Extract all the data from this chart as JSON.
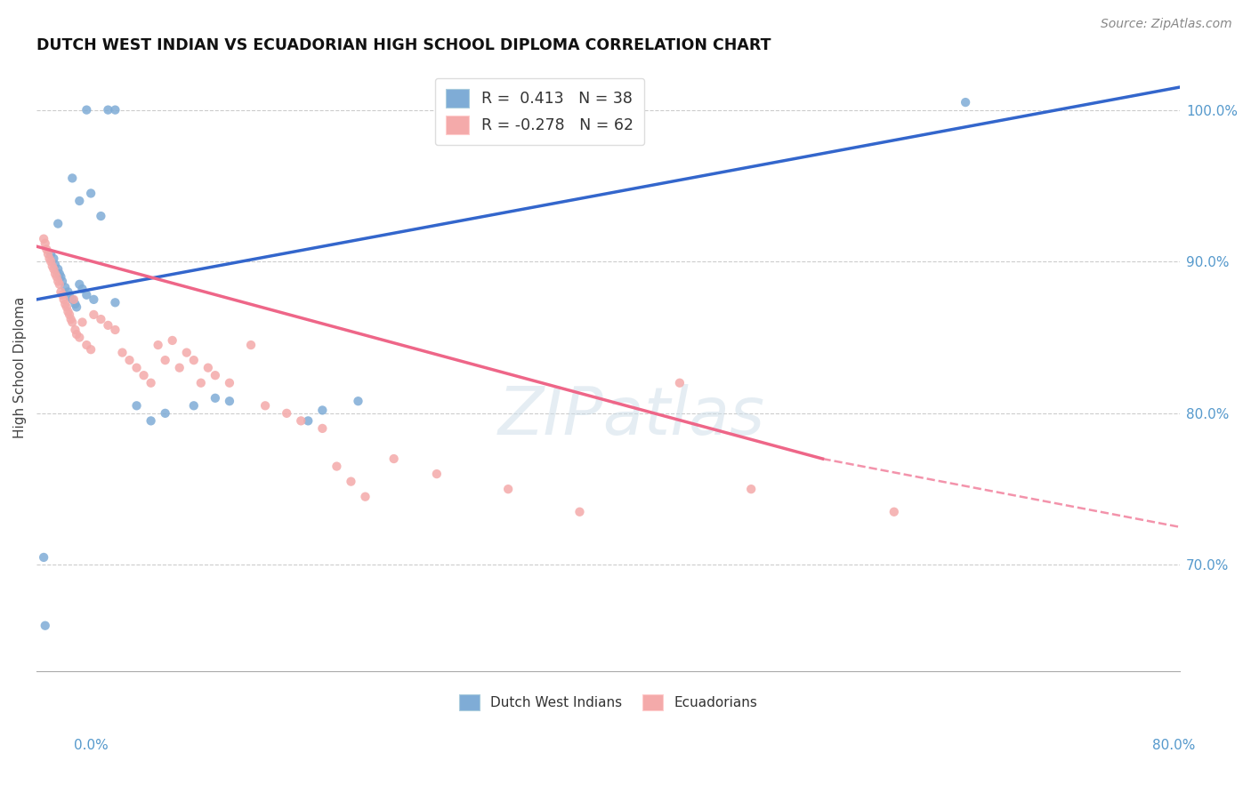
{
  "title": "DUTCH WEST INDIAN VS ECUADORIAN HIGH SCHOOL DIPLOMA CORRELATION CHART",
  "source": "Source: ZipAtlas.com",
  "ylabel": "High School Diploma",
  "yaxis_ticks": [
    70.0,
    80.0,
    90.0,
    100.0
  ],
  "yaxis_labels": [
    "70.0%",
    "80.0%",
    "90.0%",
    "100.0%"
  ],
  "xmin": 0.0,
  "xmax": 80.0,
  "ymin": 63.0,
  "ymax": 103.0,
  "legend_blue_r": " 0.413",
  "legend_blue_n": "38",
  "legend_pink_r": "-0.278",
  "legend_pink_n": "62",
  "blue_color": "#7FACD6",
  "pink_color": "#F4AAAA",
  "blue_line_color": "#3366CC",
  "pink_line_color": "#EE6688",
  "watermark_text": "ZIPatlas",
  "blue_line_x0": 0.0,
  "blue_line_y0": 87.5,
  "blue_line_x1": 80.0,
  "blue_line_y1": 101.5,
  "pink_line_x0": 0.0,
  "pink_line_y0": 91.0,
  "pink_line_x1": 55.0,
  "pink_line_y1": 77.0,
  "pink_dash_x0": 55.0,
  "pink_dash_y0": 77.0,
  "pink_dash_x1": 80.0,
  "pink_dash_y1": 72.5,
  "blue_points_x": [
    3.5,
    5.0,
    5.5,
    2.5,
    3.0,
    1.5,
    1.0,
    1.2,
    1.3,
    1.5,
    1.6,
    1.7,
    1.8,
    2.0,
    2.2,
    2.3,
    2.5,
    2.7,
    2.8,
    3.0,
    3.2,
    3.5,
    4.0,
    5.5,
    7.0,
    8.0,
    9.0,
    11.0,
    12.5,
    13.5,
    19.0,
    20.0,
    22.5,
    65.0,
    3.8,
    4.5,
    0.5,
    0.6
  ],
  "blue_points_y": [
    100.0,
    100.0,
    100.0,
    95.5,
    94.0,
    92.5,
    90.5,
    90.2,
    89.8,
    89.5,
    89.2,
    89.0,
    88.7,
    88.3,
    88.0,
    87.7,
    87.5,
    87.2,
    87.0,
    88.5,
    88.2,
    87.8,
    87.5,
    87.3,
    80.5,
    79.5,
    80.0,
    80.5,
    81.0,
    80.8,
    79.5,
    80.2,
    80.8,
    100.5,
    94.5,
    93.0,
    70.5,
    66.0
  ],
  "pink_points_x": [
    0.5,
    0.6,
    0.7,
    0.8,
    0.9,
    1.0,
    1.1,
    1.2,
    1.3,
    1.4,
    1.5,
    1.6,
    1.7,
    1.8,
    1.9,
    2.0,
    2.1,
    2.2,
    2.3,
    2.4,
    2.5,
    2.6,
    2.7,
    2.8,
    3.0,
    3.2,
    3.5,
    3.8,
    4.0,
    4.5,
    5.0,
    5.5,
    6.0,
    6.5,
    7.0,
    7.5,
    8.0,
    8.5,
    9.0,
    9.5,
    10.0,
    10.5,
    11.0,
    11.5,
    12.0,
    12.5,
    13.5,
    15.0,
    16.0,
    17.5,
    18.5,
    20.0,
    21.0,
    22.0,
    23.0,
    25.0,
    28.0,
    33.0,
    38.0,
    45.0,
    50.0,
    60.0
  ],
  "pink_points_y": [
    91.5,
    91.2,
    90.8,
    90.5,
    90.2,
    90.0,
    89.7,
    89.5,
    89.2,
    89.0,
    88.7,
    88.5,
    88.0,
    87.8,
    87.5,
    87.2,
    87.0,
    86.7,
    86.5,
    86.2,
    86.0,
    87.5,
    85.5,
    85.2,
    85.0,
    86.0,
    84.5,
    84.2,
    86.5,
    86.2,
    85.8,
    85.5,
    84.0,
    83.5,
    83.0,
    82.5,
    82.0,
    84.5,
    83.5,
    84.8,
    83.0,
    84.0,
    83.5,
    82.0,
    83.0,
    82.5,
    82.0,
    84.5,
    80.5,
    80.0,
    79.5,
    79.0,
    76.5,
    75.5,
    74.5,
    77.0,
    76.0,
    75.0,
    73.5,
    82.0,
    75.0,
    73.5
  ]
}
